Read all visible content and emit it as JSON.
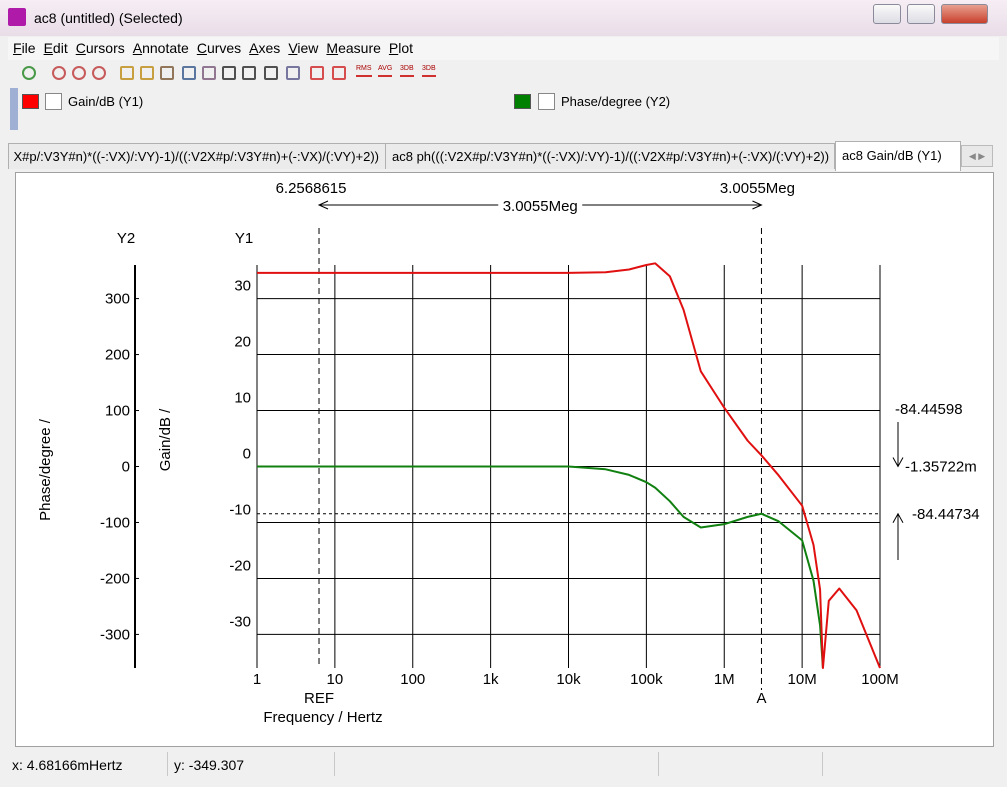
{
  "window": {
    "title": "ac8 (untitled) (Selected)"
  },
  "menu": [
    "File",
    "Edit",
    "Cursors",
    "Annotate",
    "Curves",
    "Axes",
    "View",
    "Measure",
    "Plot"
  ],
  "toolbar_labels": [
    "RMS",
    "AVG",
    "3DB",
    "3DB"
  ],
  "tabs": [
    "X#p/:V3Y#n)*((-:VX)/:VY)-1)/((:V2X#p/:V3Y#n)+(-:VX)/(:VY)+2))",
    "ac8 ph(((:V2X#p/:V3Y#n)*((-:VX)/:VY)-1)/((:V2X#p/:V3Y#n)+(-:VX)/(:VY)+2))",
    "ac8 Gain/dB (Y1)"
  ],
  "status": {
    "x": "x: 4.68166mHertz",
    "y": "y: -349.307"
  },
  "chart_data": {
    "type": "line",
    "xscale": "log",
    "grid": true,
    "xlabel": "Frequency / Hertz",
    "ylabel": "Gain/dB /",
    "y2label": "Phase/degree /",
    "y_title": "Y1",
    "y2_title": "Y2",
    "x": [
      1,
      10,
      100,
      1000,
      10000,
      30000,
      60000,
      100000,
      130000,
      200000,
      300000,
      500000,
      1000000,
      2000000,
      3000000,
      5000000,
      10000000,
      14000000,
      17000000,
      18500000,
      22000000,
      30000000,
      50000000,
      100000000
    ],
    "series": [
      {
        "name": "Gain/dB (Y1)",
        "color": "#e01010",
        "values": [
          34.6,
          34.6,
          34.6,
          34.6,
          34.6,
          34.7,
          35.2,
          36,
          36.3,
          34,
          28,
          17,
          10.5,
          4.6,
          2,
          -1.6,
          -7,
          -14,
          -22,
          -36,
          -24,
          -21.8,
          -25.7,
          -36
        ]
      },
      {
        "name": "Phase/degree (Y2)",
        "color": "#108010",
        "axis": "y2",
        "values": [
          0,
          0,
          0,
          0,
          0,
          -5,
          -15,
          -28,
          -38,
          -62,
          -90,
          -109,
          -103,
          -90,
          -84.4,
          -98,
          -132,
          -204,
          -284,
          -360,
          null,
          null,
          null,
          null
        ]
      }
    ],
    "xlim": [
      1,
      100000000
    ],
    "xticks": [
      1,
      10,
      100,
      {
        "value": 1000,
        "label": "1k"
      },
      {
        "value": 10000,
        "label": "10k"
      },
      {
        "value": 100000,
        "label": "100k"
      },
      {
        "value": 1000000,
        "label": "1M"
      },
      {
        "value": 10000000,
        "label": "10M"
      },
      {
        "value": 100000000,
        "label": "100M"
      }
    ],
    "ylim": [
      -36,
      36
    ],
    "yticks": [
      30,
      20,
      10,
      0,
      -10,
      -20,
      -30
    ],
    "y2lim": [
      -360,
      360
    ],
    "y2ticks": [
      300,
      200,
      100,
      0,
      -100,
      -200,
      -300
    ],
    "cursors": {
      "ref_x": 6.2568615,
      "a_x": {
        "value": 3005500,
        "label": "3.0055Meg"
      },
      "dx": {
        "value": 3005494,
        "label": "3.0055Meg"
      },
      "ref_y": {
        "value": -0.00135722,
        "label": "-1.35722m"
      },
      "a_y": -84.44734,
      "dy": -84.44598,
      "ref_label": "REF",
      "a_label": "A"
    }
  }
}
